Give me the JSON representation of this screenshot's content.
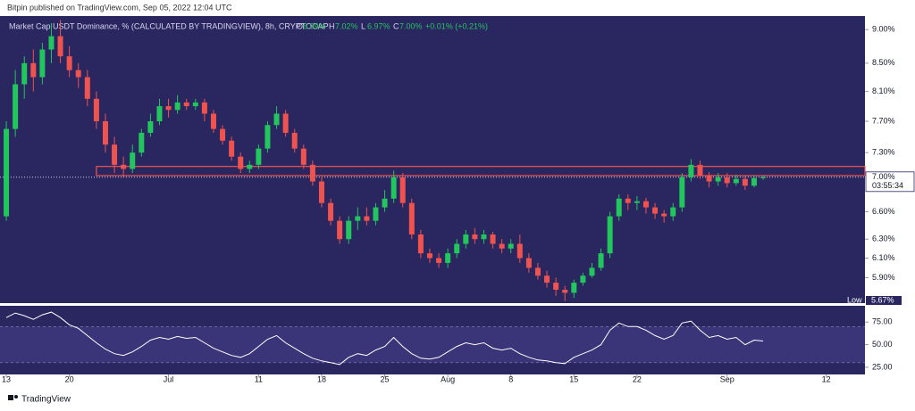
{
  "header": {
    "text": "Bitpin published on TradingView.com, Sep 05, 2022 12:04 UTC"
  },
  "footer": {
    "logo_text": "TradingView"
  },
  "chart_data": [
    {
      "type": "candlestick",
      "title": "Market Cap USDT Dominance, % (CALCULATED BY TRADINGVIEW), 8h, CRYPTOCAP",
      "readout": [
        {
          "label": "O",
          "value": "6.99%"
        },
        {
          "label": "H",
          "value": "7.02%"
        },
        {
          "label": "L",
          "value": "6.97%"
        },
        {
          "label": "C",
          "value": "7.00%"
        }
      ],
      "change": "+0.01% (+0.21%)",
      "last_price_label": {
        "value": "7.00%",
        "countdown": "03:55:34"
      },
      "low_label": {
        "label": "Low",
        "value": "5.67%"
      },
      "up_color": "#22c55e",
      "down_color": "#ef5350",
      "background": "#2a2660",
      "log_scale": true,
      "ylim": [
        5.65,
        9.21
      ],
      "yticks": [
        {
          "value": 5.9,
          "label": "5.90%"
        },
        {
          "value": 6.1,
          "label": "6.10%"
        },
        {
          "value": 6.3,
          "label": "6.30%"
        },
        {
          "value": 6.6,
          "label": "6.60%"
        },
        {
          "value": 7.3,
          "label": "7.30%"
        },
        {
          "value": 7.7,
          "label": "7.70%"
        },
        {
          "value": 8.1,
          "label": "8.10%"
        },
        {
          "value": 8.5,
          "label": "8.50%"
        },
        {
          "value": 9,
          "label": "9.00%"
        }
      ],
      "xlim": [
        -0.7,
        95.3
      ],
      "xticks": [
        {
          "value": 0,
          "label": "13"
        },
        {
          "value": 7,
          "label": "20"
        },
        {
          "value": 18,
          "label": "Jul"
        },
        {
          "value": 28,
          "label": "11"
        },
        {
          "value": 35,
          "label": "18"
        },
        {
          "value": 42,
          "label": "25"
        },
        {
          "value": 49,
          "label": "Aug"
        },
        {
          "value": 56,
          "label": "8"
        },
        {
          "value": 63,
          "label": "15"
        },
        {
          "value": 70,
          "label": "22"
        },
        {
          "value": 80,
          "label": "Sep"
        },
        {
          "value": 91,
          "label": "12"
        }
      ],
      "zone": {
        "range": [
          7.02,
          7.13
        ],
        "start": 10,
        "color": "#ef5350"
      },
      "ohlc": [
        [
          6.55,
          7.7,
          6.5,
          7.6
        ],
        [
          7.6,
          8.4,
          7.5,
          8.2
        ],
        [
          8.2,
          8.6,
          8.0,
          8.5
        ],
        [
          8.5,
          8.7,
          8.1,
          8.3
        ],
        [
          8.3,
          8.8,
          8.2,
          8.7
        ],
        [
          8.7,
          9.1,
          8.5,
          8.9
        ],
        [
          8.9,
          9.15,
          8.5,
          8.6
        ],
        [
          8.6,
          8.75,
          8.3,
          8.4
        ],
        [
          8.4,
          8.5,
          8.15,
          8.3
        ],
        [
          8.3,
          8.4,
          7.9,
          8.0
        ],
        [
          8.0,
          8.1,
          7.6,
          7.7
        ],
        [
          7.7,
          7.8,
          7.3,
          7.4
        ],
        [
          7.4,
          7.5,
          7.05,
          7.15
        ],
        [
          7.15,
          7.25,
          7.0,
          7.1
        ],
        [
          7.1,
          7.4,
          7.05,
          7.3
        ],
        [
          7.3,
          7.6,
          7.25,
          7.55
        ],
        [
          7.55,
          7.8,
          7.5,
          7.7
        ],
        [
          7.7,
          8.0,
          7.65,
          7.9
        ],
        [
          7.9,
          8.0,
          7.75,
          7.85
        ],
        [
          7.85,
          8.05,
          7.8,
          7.95
        ],
        [
          7.95,
          8.0,
          7.85,
          7.9
        ],
        [
          7.9,
          8.0,
          7.85,
          7.95
        ],
        [
          7.95,
          8.0,
          7.7,
          7.8
        ],
        [
          7.8,
          7.85,
          7.55,
          7.6
        ],
        [
          7.6,
          7.65,
          7.4,
          7.45
        ],
        [
          7.45,
          7.5,
          7.2,
          7.25
        ],
        [
          7.25,
          7.3,
          7.05,
          7.1
        ],
        [
          7.1,
          7.2,
          7.05,
          7.15
        ],
        [
          7.15,
          7.4,
          7.1,
          7.35
        ],
        [
          7.35,
          7.7,
          7.3,
          7.65
        ],
        [
          7.65,
          7.9,
          7.6,
          7.8
        ],
        [
          7.8,
          7.85,
          7.5,
          7.55
        ],
        [
          7.55,
          7.6,
          7.3,
          7.35
        ],
        [
          7.35,
          7.4,
          7.1,
          7.15
        ],
        [
          7.15,
          7.2,
          6.9,
          6.95
        ],
        [
          6.95,
          7.0,
          6.65,
          6.7
        ],
        [
          6.7,
          6.75,
          6.45,
          6.5
        ],
        [
          6.5,
          6.55,
          6.25,
          6.3
        ],
        [
          6.3,
          6.55,
          6.25,
          6.5
        ],
        [
          6.5,
          6.65,
          6.4,
          6.55
        ],
        [
          6.55,
          6.65,
          6.45,
          6.5
        ],
        [
          6.5,
          6.7,
          6.45,
          6.65
        ],
        [
          6.65,
          6.85,
          6.6,
          6.75
        ],
        [
          6.75,
          7.08,
          6.7,
          7.0
        ],
        [
          7.0,
          7.05,
          6.65,
          6.7
        ],
        [
          6.7,
          6.75,
          6.3,
          6.35
        ],
        [
          6.35,
          6.4,
          6.1,
          6.15
        ],
        [
          6.15,
          6.2,
          6.05,
          6.1
        ],
        [
          6.1,
          6.15,
          6.0,
          6.05
        ],
        [
          6.05,
          6.2,
          6.0,
          6.15
        ],
        [
          6.15,
          6.3,
          6.1,
          6.25
        ],
        [
          6.25,
          6.4,
          6.2,
          6.35
        ],
        [
          6.35,
          6.42,
          6.25,
          6.3
        ],
        [
          6.3,
          6.4,
          6.25,
          6.35
        ],
        [
          6.35,
          6.38,
          6.2,
          6.25
        ],
        [
          6.25,
          6.3,
          6.15,
          6.2
        ],
        [
          6.2,
          6.3,
          6.15,
          6.25
        ],
        [
          6.25,
          6.35,
          6.05,
          6.1
        ],
        [
          6.1,
          6.15,
          5.95,
          6.0
        ],
        [
          6.0,
          6.05,
          5.88,
          5.92
        ],
        [
          5.92,
          5.97,
          5.8,
          5.85
        ],
        [
          5.85,
          5.9,
          5.72,
          5.78
        ],
        [
          5.78,
          5.82,
          5.67,
          5.75
        ],
        [
          5.75,
          5.88,
          5.7,
          5.85
        ],
        [
          5.85,
          5.95,
          5.82,
          5.92
        ],
        [
          5.92,
          6.05,
          5.9,
          6.0
        ],
        [
          6.0,
          6.2,
          5.97,
          6.15
        ],
        [
          6.15,
          6.6,
          6.1,
          6.55
        ],
        [
          6.55,
          6.8,
          6.5,
          6.75
        ],
        [
          6.75,
          6.8,
          6.62,
          6.7
        ],
        [
          6.7,
          6.78,
          6.62,
          6.72
        ],
        [
          6.72,
          6.76,
          6.58,
          6.65
        ],
        [
          6.65,
          6.7,
          6.52,
          6.58
        ],
        [
          6.58,
          6.62,
          6.48,
          6.55
        ],
        [
          6.55,
          6.7,
          6.5,
          6.65
        ],
        [
          6.65,
          7.05,
          6.6,
          7.0
        ],
        [
          7.0,
          7.22,
          6.95,
          7.15
        ],
        [
          7.15,
          7.2,
          6.98,
          7.02
        ],
        [
          7.02,
          7.06,
          6.88,
          6.95
        ],
        [
          6.95,
          7.05,
          6.9,
          7.0
        ],
        [
          7.0,
          7.05,
          6.88,
          6.93
        ],
        [
          6.93,
          7.03,
          6.9,
          6.98
        ],
        [
          6.98,
          7.02,
          6.85,
          6.9
        ],
        [
          6.9,
          7.02,
          6.88,
          6.99
        ],
        [
          6.99,
          7.02,
          6.97,
          7.0
        ]
      ]
    },
    {
      "type": "line",
      "color": "#ffffff",
      "band": [
        30,
        70
      ],
      "band_color": "#3a3478",
      "ylim": [
        17,
        93
      ],
      "yticks": [
        {
          "value": 25,
          "label": "25.00"
        },
        {
          "value": 50,
          "label": "50.00"
        },
        {
          "value": 75,
          "label": "75.00"
        }
      ],
      "values": [
        80,
        85,
        82,
        78,
        83,
        86,
        80,
        72,
        68,
        60,
        52,
        45,
        40,
        38,
        42,
        48,
        55,
        58,
        56,
        59,
        57,
        58,
        52,
        46,
        42,
        38,
        36,
        40,
        48,
        56,
        60,
        52,
        46,
        40,
        35,
        32,
        30,
        28,
        36,
        40,
        38,
        44,
        48,
        58,
        48,
        40,
        35,
        34,
        36,
        42,
        48,
        52,
        50,
        52,
        46,
        44,
        46,
        40,
        36,
        33,
        32,
        30,
        29,
        36,
        40,
        44,
        50,
        66,
        74,
        70,
        70,
        66,
        60,
        56,
        60,
        74,
        76,
        66,
        58,
        60,
        56,
        58,
        50,
        55,
        54
      ]
    }
  ]
}
